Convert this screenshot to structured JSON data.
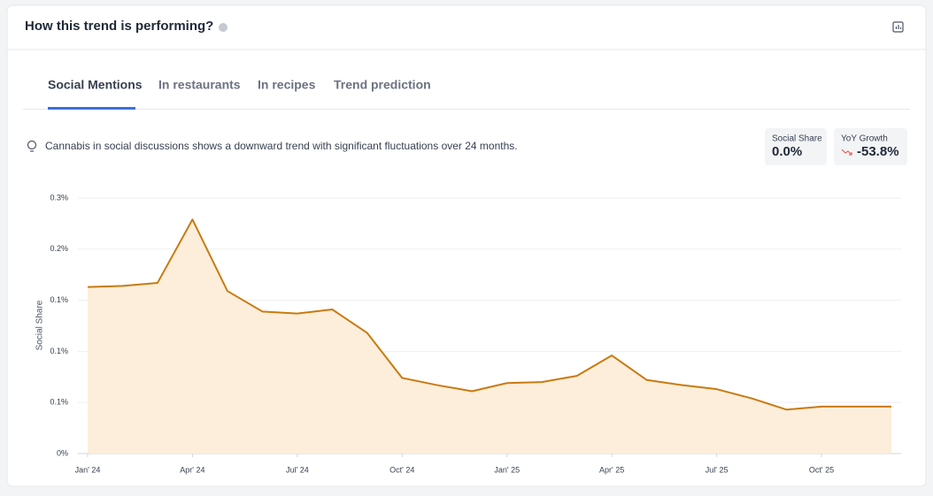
{
  "header": {
    "title": "How this trend is performing?"
  },
  "tabs": [
    "Social Mentions",
    "In restaurants",
    "In recipes",
    "Trend prediction"
  ],
  "insight": "Cannabis in social discussions shows a downward trend with significant fluctuations over 24 months.",
  "stats": [
    {
      "label": "Social Share",
      "value": "0.0%"
    },
    {
      "label": "YoY Growth",
      "value": "-53.8%"
    }
  ],
  "chart_data": {
    "type": "line",
    "y_label": "Social Share",
    "categories": [
      "Jan' 24",
      null,
      null,
      "Apr' 24",
      null,
      null,
      "Jul' 24",
      null,
      null,
      "Oct' 24",
      null,
      null,
      "Jan' 25",
      null,
      null,
      "Apr' 25",
      null,
      null,
      "Jul' 25",
      null,
      null,
      "Oct' 25",
      null,
      null
    ],
    "series": [
      {
        "name": "Social Share",
        "color": "#c97a0e",
        "fill": "#fdeedb",
        "values": [
          0.163,
          0.164,
          0.167,
          0.229,
          0.159,
          0.139,
          0.137,
          0.141,
          0.118,
          0.074,
          0.067,
          0.061,
          0.069,
          0.07,
          0.076,
          0.096,
          0.072,
          0.067,
          0.063,
          0.054,
          0.043,
          0.046,
          0.046,
          0.046
        ]
      }
    ],
    "ylim": [
      0,
      0.25
    ],
    "yticks": [
      {
        "value": 0,
        "label": "0%"
      },
      {
        "value": 0.05,
        "label": "0.1%"
      },
      {
        "value": 0.1,
        "label": "0.1%"
      },
      {
        "value": 0.15,
        "label": "0.1%"
      },
      {
        "value": 0.2,
        "label": "0.2%"
      },
      {
        "value": 0.25,
        "label": "0.3%"
      }
    ],
    "grid": true
  }
}
